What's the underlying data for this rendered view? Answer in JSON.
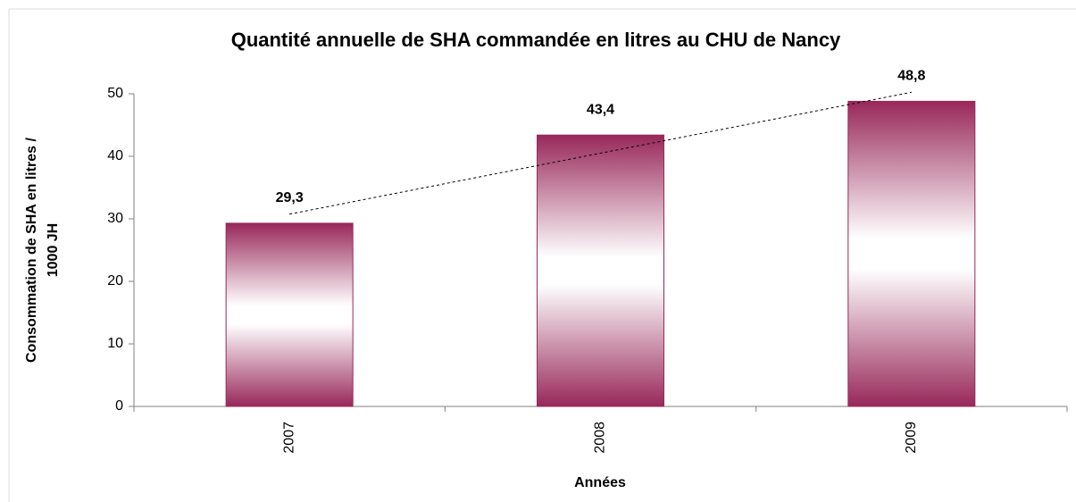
{
  "chart_data": {
    "type": "bar",
    "title": "Quantité annuelle de SHA commandée en litres au CHU de Nancy",
    "x_label": "Années",
    "y_label": [
      "Consommation de SHA en litres /",
      "1000 JH"
    ],
    "categories": [
      "2007",
      "2008",
      "2009"
    ],
    "values": [
      29.3,
      43.4,
      48.8
    ],
    "value_labels": [
      "29,3",
      "43,4",
      "48,8"
    ],
    "color": "#98285a",
    "ylim": [
      0,
      50
    ],
    "yticks": [
      0,
      10,
      20,
      30,
      40,
      50
    ],
    "trendline": true
  }
}
